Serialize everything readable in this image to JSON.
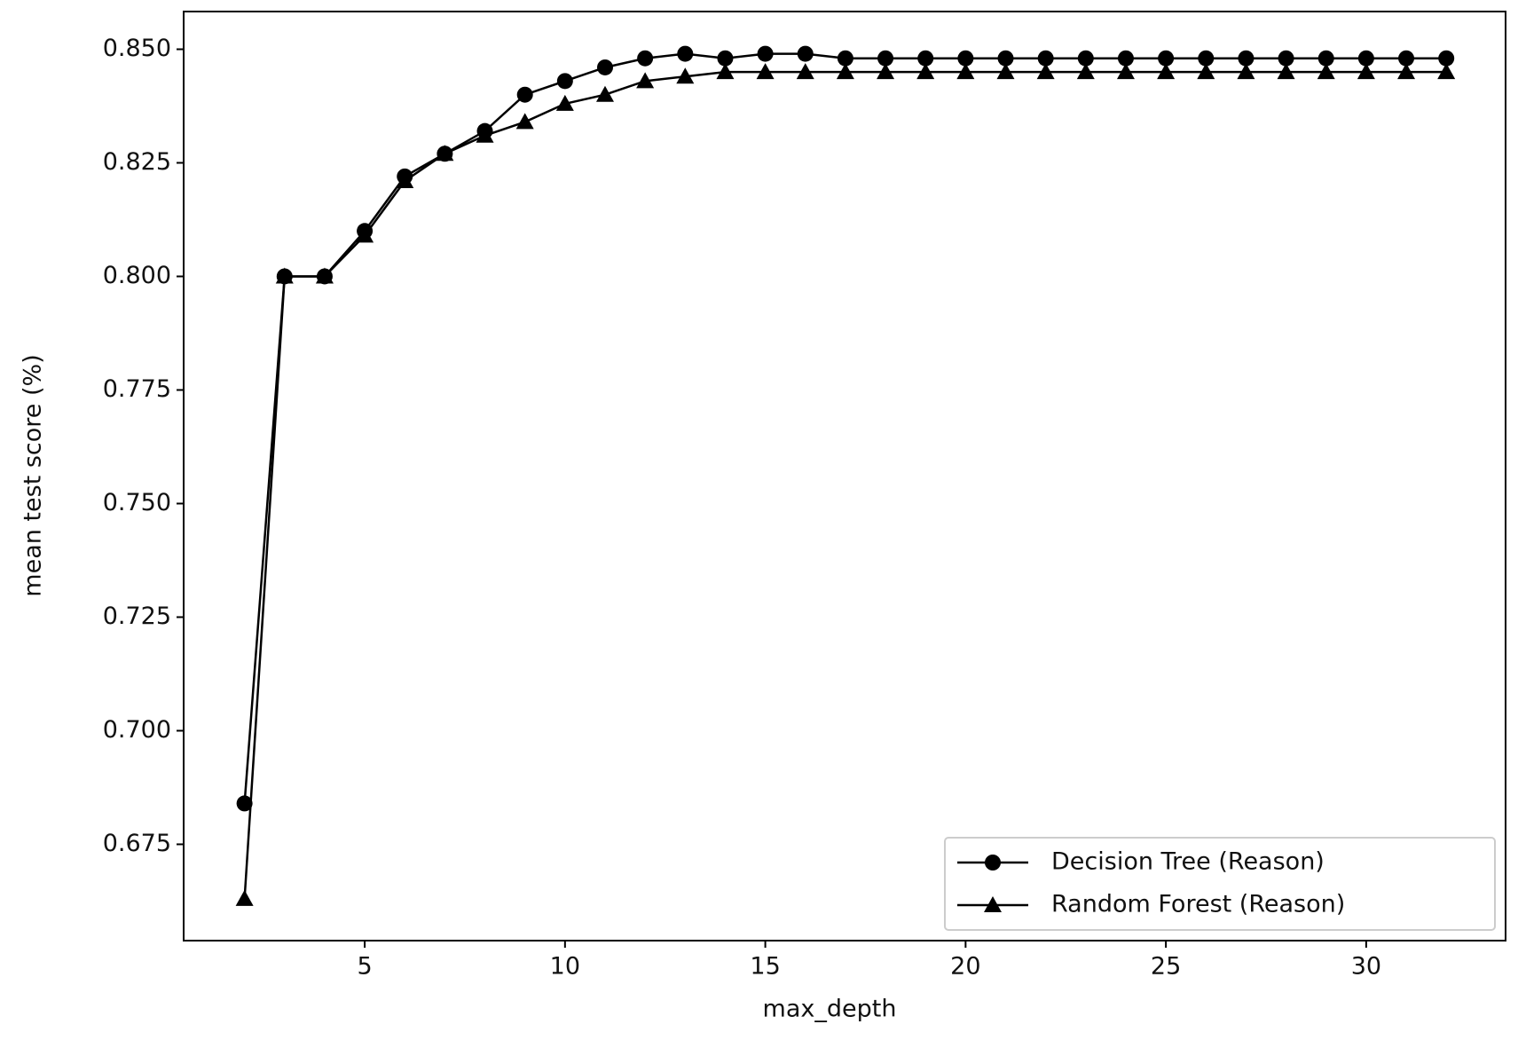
{
  "chart_data": {
    "type": "line",
    "xlabel": "max_depth",
    "ylabel": "mean test score (%)",
    "x": [
      2,
      3,
      4,
      5,
      6,
      7,
      8,
      9,
      10,
      11,
      12,
      13,
      14,
      15,
      16,
      17,
      18,
      19,
      20,
      21,
      22,
      23,
      24,
      25,
      26,
      27,
      28,
      29,
      30,
      31,
      32
    ],
    "series": [
      {
        "name": "Decision Tree (Reason)",
        "color": "#000000",
        "marker": "circle",
        "values": [
          0.684,
          0.8,
          0.8,
          0.81,
          0.822,
          0.827,
          0.832,
          0.84,
          0.843,
          0.846,
          0.848,
          0.849,
          0.848,
          0.849,
          0.849,
          0.848,
          0.848,
          0.848,
          0.848,
          0.848,
          0.848,
          0.848,
          0.848,
          0.848,
          0.848,
          0.848,
          0.848,
          0.848,
          0.848,
          0.848,
          0.848
        ]
      },
      {
        "name": "Random Forest (Reason)",
        "color": "#000000",
        "marker": "triangle",
        "values": [
          0.663,
          0.8,
          0.8,
          0.809,
          0.821,
          0.827,
          0.831,
          0.834,
          0.838,
          0.84,
          0.843,
          0.844,
          0.845,
          0.845,
          0.845,
          0.845,
          0.845,
          0.845,
          0.845,
          0.845,
          0.845,
          0.845,
          0.845,
          0.845,
          0.845,
          0.845,
          0.845,
          0.845,
          0.845,
          0.845,
          0.845
        ]
      }
    ],
    "xlim": [
      0.48,
      33.48
    ],
    "xticks": [
      5,
      10,
      15,
      20,
      25,
      30
    ],
    "ylim": [
      0.6538,
      0.8583
    ],
    "yticks": [
      0.675,
      {
        "value": 0.7,
        "label": "0.700"
      },
      0.725,
      {
        "value": 0.75,
        "label": "0.750"
      },
      0.775,
      {
        "value": 0.8,
        "label": "0.800"
      },
      0.825,
      {
        "value": 0.85,
        "label": "0.850"
      }
    ],
    "grid": false,
    "legend": "lower right"
  }
}
